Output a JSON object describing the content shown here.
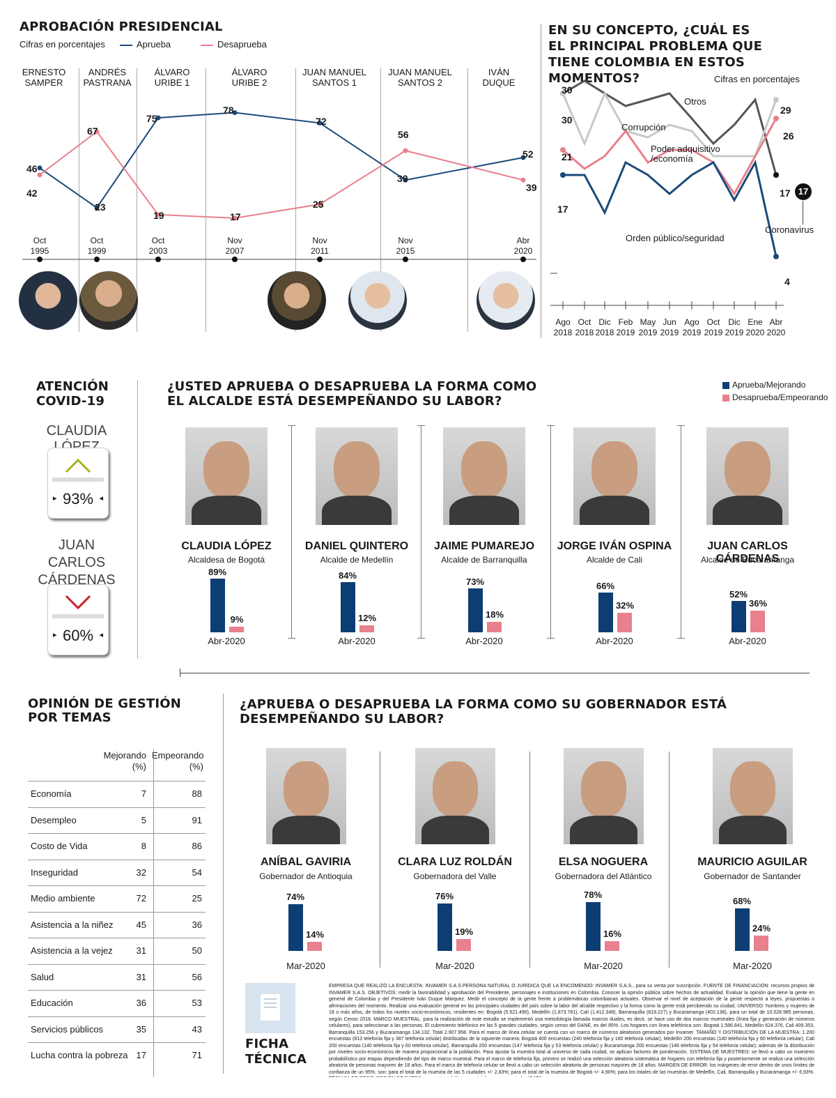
{
  "presidential": {
    "title": "APROBACIÓN PRESIDENCIAL",
    "subtitle": "Cifras en porcentajes",
    "legend_approve": "Aprueba",
    "legend_disapprove": "Desaprueba",
    "eras": [
      "ERNESTO\nSAMPER",
      "ANDRÉS\nPASTRANA",
      "ÁLVARO\nURIBE 1",
      "ÁLVARO\nURIBE 2",
      "JUAN MANUEL\nSANTOS 1",
      "JUAN MANUEL\nSANTOS 2",
      "IVÁN\nDUQUE"
    ],
    "era_l1": [
      "ERNESTO",
      "ANDRÉS",
      "ÁLVARO",
      "ÁLVARO",
      "JUAN MANUEL",
      "JUAN MANUEL",
      "IVÁN"
    ],
    "era_l2": [
      "SAMPER",
      "PASTRANA",
      "URIBE 1",
      "URIBE 2",
      "SANTOS 1",
      "SANTOS 2",
      "DUQUE"
    ],
    "dates": [
      [
        "Oct",
        "1995"
      ],
      [
        "Oct",
        "1999"
      ],
      [
        "Oct",
        "2003"
      ],
      [
        "Nov",
        "2007"
      ],
      [
        "Nov",
        "2011"
      ],
      [
        "Nov",
        "2015"
      ],
      [
        "Abr",
        "2020"
      ]
    ],
    "approve_labels": [
      "46",
      "23",
      "75",
      "78",
      "72",
      "39",
      "52"
    ],
    "disapprove_labels": [
      "42",
      "67",
      "19",
      "17",
      "25",
      "56",
      "39"
    ],
    "colors": {
      "approve": "#1b4a7a",
      "disapprove": "#e8808d"
    }
  },
  "problems": {
    "title_l1": "EN SU CONCEPTO, ¿CUÁL ES",
    "title_l2": "EL PRINCIPAL PROBLEMA QUE",
    "title_l3": "TIENE COLOMBIA EN ESTOS MOMENTOS?",
    "subtitle": "Cifras en porcentajes",
    "series_labels": {
      "otros": "Otros",
      "corrupcion": "Corrupción",
      "poder_l1": "Poder adquisitivo",
      "poder_l2": "/economía",
      "orden": "Orden público/seguridad",
      "coronavirus": "Coronavirus"
    },
    "value_labels": {
      "otros_start": "30",
      "corrupcion_start": "30",
      "poder_start": "21",
      "orden_start": "17",
      "corrupcion_end": "29",
      "poder_end": "26",
      "otros_end": "17",
      "coronavirus_end": "17",
      "orden_end": "4"
    },
    "x_l1": [
      "Ago",
      "Oct",
      "Dic",
      "Feb",
      "May",
      "Jun",
      "Ago",
      "Oct",
      "Dic",
      "Ene",
      "Abr"
    ],
    "x_l2": [
      "2018",
      "2018",
      "2018",
      "2019",
      "2019",
      "2019",
      "2019",
      "2019",
      "2019",
      "2020",
      "2020"
    ]
  },
  "chart_data": [
    {
      "type": "line",
      "title": "APROBACIÓN PRESIDENCIAL",
      "subtitle": "Cifras en porcentajes",
      "x": [
        "Oct 1995",
        "Oct 1999",
        "Oct 2003",
        "Nov 2007",
        "Nov 2011",
        "Nov 2015",
        "Abr 2020"
      ],
      "series": [
        {
          "name": "Aprueba",
          "values": [
            46,
            23,
            75,
            78,
            72,
            39,
            52
          ]
        },
        {
          "name": "Desaprueba",
          "values": [
            42,
            67,
            19,
            17,
            25,
            56,
            39
          ]
        }
      ]
    },
    {
      "type": "line",
      "title": "EN SU CONCEPTO, ¿CUÁL ES EL PRINCIPAL PROBLEMA QUE TIENE COLOMBIA EN ESTOS MOMENTOS?",
      "subtitle": "Cifras en porcentajes",
      "x": [
        "Ago 2018",
        "Oct 2018",
        "Dic 2018",
        "Feb 2019",
        "May 2019",
        "Jun 2019",
        "Ago 2019",
        "Oct 2019",
        "Dic 2019",
        "Ene 2020",
        "Abr 2020"
      ],
      "ylim": [
        0,
        32
      ],
      "series": [
        {
          "name": "Otros",
          "values": [
            30,
            32,
            30,
            28,
            29,
            30,
            26,
            22,
            25,
            29,
            17
          ],
          "color": "#555555"
        },
        {
          "name": "Corrupción",
          "values": [
            30,
            22,
            30,
            24,
            23,
            25,
            24,
            20,
            20,
            20,
            29
          ],
          "color": "#c8c8c8"
        },
        {
          "name": "Poder adquisitivo/economía",
          "values": [
            21,
            18,
            20,
            24,
            19,
            21,
            21,
            19,
            14,
            20,
            26
          ],
          "color": "#e8808d"
        },
        {
          "name": "Orden público/seguridad",
          "values": [
            17,
            17,
            11,
            19,
            17,
            14,
            17,
            19,
            13,
            19,
            4
          ],
          "color": "#1b4a7a"
        },
        {
          "name": "Coronavirus",
          "values": [
            null,
            null,
            null,
            null,
            null,
            null,
            null,
            null,
            null,
            null,
            17
          ],
          "color": "#111111"
        }
      ]
    },
    {
      "type": "bar",
      "title": "¿USTED APRUEBA O DESAPRUEBA LA FORMA COMO EL ALCALDE ESTÁ DESEMPEÑANDO SU LABOR?",
      "categories": [
        "CLAUDIA LÓPEZ",
        "DANIEL QUINTERO",
        "JAIME PUMAREJO",
        "JORGE IVÁN OSPINA",
        "JUAN CARLOS CÁRDENAS"
      ],
      "series": [
        {
          "name": "Aprueba/Mejorando",
          "values": [
            89,
            84,
            73,
            66,
            52
          ]
        },
        {
          "name": "Desaprueba/Empeorando",
          "values": [
            9,
            12,
            18,
            32,
            36
          ]
        }
      ]
    },
    {
      "type": "bar",
      "title": "¿APRUEBA O DESAPRUEBA LA FORMA COMO SU GOBERNADOR ESTÁ DESEMPEÑANDO SU LABOR?",
      "categories": [
        "ANÍBAL GAVIRIA",
        "CLARA LUZ ROLDÁN",
        "ELSA NOGUERA",
        "MAURICIO AGUILAR"
      ],
      "series": [
        {
          "name": "Aprueba",
          "values": [
            74,
            76,
            78,
            68
          ]
        },
        {
          "name": "Desaprueba",
          "values": [
            14,
            19,
            16,
            24
          ]
        }
      ]
    },
    {
      "type": "table",
      "title": "OPINIÓN DE GESTIÓN POR TEMAS",
      "columns": [
        "Mejorando (%)",
        "Empeorando (%)"
      ],
      "rows": [
        [
          "Economía",
          7,
          88
        ],
        [
          "Desempleo",
          5,
          91
        ],
        [
          "Costo de Vida",
          8,
          86
        ],
        [
          "Inseguridad",
          32,
          54
        ],
        [
          "Medio ambiente",
          72,
          25
        ],
        [
          "Asistencia a la niñez",
          45,
          36
        ],
        [
          "Asistencia a la vejez",
          31,
          50
        ],
        [
          "Salud",
          31,
          56
        ],
        [
          "Educación",
          36,
          53
        ],
        [
          "Servicios públicos",
          35,
          43
        ],
        [
          "Lucha contra la pobreza",
          17,
          71
        ]
      ]
    }
  ],
  "covid": {
    "title_l1": "ATENCIÓN",
    "title_l2": "COVID-19",
    "p1_name": "CLAUDIA LÓPEZ",
    "p1_value": "93%",
    "p2_name_l1": "JUAN CARLOS",
    "p2_name_l2": "CÁRDENAS",
    "p2_value": "60%"
  },
  "mayors": {
    "title_l1": "¿USTED APRUEBA O DESAPRUEBA LA FORMA COMO",
    "title_l2": "EL ALCALDE ESTÁ DESEMPEÑANDO SU LABOR?",
    "legend_approve": "Aprueba/Mejorando",
    "legend_disapprove": "Desaprueba/Empeorando",
    "items": [
      {
        "name": "CLAUDIA LÓPEZ",
        "role": "Alcaldesa de Bogotá",
        "approve": "89%",
        "disapprove": "9%",
        "date": "Abr-2020"
      },
      {
        "name": "DANIEL QUINTERO",
        "role": "Alcalde de Medellín",
        "approve": "84%",
        "disapprove": "12%",
        "date": "Abr-2020"
      },
      {
        "name": "JAIME PUMAREJO",
        "role": "Alcalde de Barranquilla",
        "approve": "73%",
        "disapprove": "18%",
        "date": "Abr-2020"
      },
      {
        "name": "JORGE IVÁN OSPINA",
        "role": "Alcalde de Cali",
        "approve": "66%",
        "disapprove": "32%",
        "date": "Abr-2020"
      },
      {
        "name": "JUAN CARLOS CÁRDENAS",
        "role": "Alcalde de Bucaramanga",
        "approve": "52%",
        "disapprove": "36%",
        "date": "Abr-2020"
      }
    ]
  },
  "topics": {
    "title_l1": "OPINIÓN DE GESTIÓN",
    "title_l2": "POR TEMAS",
    "col1_l1": "Mejorando",
    "col1_l2": "(%)",
    "col2_l1": "Empeorando",
    "col2_l2": "(%)",
    "rows": [
      {
        "topic": "Economía",
        "up": "7",
        "down": "88"
      },
      {
        "topic": "Desempleo",
        "up": "5",
        "down": "91"
      },
      {
        "topic": "Costo de Vida",
        "up": "8",
        "down": "86"
      },
      {
        "topic": "Inseguridad",
        "up": "32",
        "down": "54"
      },
      {
        "topic": "Medio ambiente",
        "up": "72",
        "down": "25"
      },
      {
        "topic": "Asistencia a la niñez",
        "up": "45",
        "down": "36"
      },
      {
        "topic": "Asistencia a la vejez",
        "up": "31",
        "down": "50"
      },
      {
        "topic": "Salud",
        "up": "31",
        "down": "56"
      },
      {
        "topic": "Educación",
        "up": "36",
        "down": "53"
      },
      {
        "topic": "Servicios públicos",
        "up": "35",
        "down": "43"
      },
      {
        "topic": "Lucha contra la pobreza",
        "up": "17",
        "down": "71"
      }
    ]
  },
  "governors": {
    "title": "¿APRUEBA O DESAPRUEBA LA FORMA COMO SU GOBERNADOR  ESTÁ DESEMPEÑANDO SU LABOR?",
    "items": [
      {
        "name": "ANÍBAL GAVIRIA",
        "role": "Gobernador de Antioquia",
        "approve": "74%",
        "disapprove": "14%",
        "date": "Mar-2020"
      },
      {
        "name": "CLARA LUZ ROLDÁN",
        "role": "Gobernadora del Valle",
        "approve": "76%",
        "disapprove": "19%",
        "date": "Mar-2020"
      },
      {
        "name": "ELSA NOGUERA",
        "role": "Gobernadora del Atlántico",
        "approve": "78%",
        "disapprove": "16%",
        "date": "Mar-2020"
      },
      {
        "name": "MAURICIO AGUILAR",
        "role": "Gobernador de Santander",
        "approve": "68%",
        "disapprove": "24%",
        "date": "Mar-2020"
      }
    ]
  },
  "ficha": {
    "label_l1": "FICHA",
    "label_l2": "TÉCNICA",
    "text": "EMPRESA QUE REALIZÓ LA ENCUESTA: INVAMER S.A.S.PERSONA NATURAL O JURÍDICA QUE LA ENCOMENDÓ: INVAMER S.A.S., para su venta por suscripción. FUENTE DE FINANCIACIÓN: recursos propios de INVAMER S.A.S. OBJETIVOS: medir la favorabilidad y aprobación del Presidente, personajes e instituciones en Colombia. Conocer la opinión pública sobre hechos de actualidad. Evaluar la opinión que tiene la gente en general de Colombia y del Presidente Iván Duque Márquez. Medir el concepto de la gente frente a problemáticas colombianas actuales. Observar el nivel de aceptación de la gente respecto a leyes, propuestas o afirmaciones del momento. Realizar una evaluación general en las principales ciudades del país sobre la labor del alcalde respectivo y la forma como la gente está percibiendo su ciudad. UNIVERSO: hombres y mujeres de 18 o más años, de todos los niveles socio-económicos, residentes en: Bogotá (5.521.490), Medellín (1.873.781), Cali (1.412.348), Barranquilla (819.227) y Bucaramanga (402.138), para un total de 10.028.985 personas, según Censo 2018. MARCO MUESTRAL: para la realización de este estudio se implementó una metodología llamada marcos duales, es decir, se hace uso de dos marcos muestrales (línea fija y generación de números celulares), para seleccionar a las personas. El cubrimiento telefónico en las 5 grandes ciudades, según censo del DANE, es del 85%. Los hogares con línea telefónica son: Bogotá 1.586.841, Medellín 624.376, Cali 409.353, Barranquilla 153.256 y Bucaramanga 134.132. Total 2.907.958. Para el marco de línea celular se cuenta con un marco de números aleatorios generados por Invamer. TAMAÑO Y DISTRIBUCIÓN DE LA MUESTRA: 1.200 encuestas (813 telefonía fija y 387 telefonía celular) distribuidas de la siguiente manera: Bogotá 400 encuestas (240 telefonía fija y 160 telefonía celular), Medellín 200 encuestas (140 telefonía fija y 60 telefonía celular), Cali 200 encuestas (140 telefonía fija y 60 telefonía celular), Barranquilla 200 encuestas (147 telefonía fija y 53 telefonía celular) y Bucaramanga 200 encuestas (146 telefonía fija y 54 telefonía celular); además de la distribución por niveles socio-económicos de manera proporcional a la población. Para ajustar la muestra total al universo de cada ciudad, se aplican factores de ponderación. SISTEMA DE MUESTREO: se llevó a cabo un muestreo probabilístico por etapas dependiendo del tipo de marco muestral. Para el marco de telefonía fija, primero se realizó una selección aleatoria sistemática de hogares con telefonía fija y posteriormente se realiza una selección aleatoria de personas mayores de 18 años. Para el marco de telefonía celular se llevó a cabo un selección aleatoria de personas mayores de 18 años. MARGEN DE ERROR: los márgenes de error dentro de unos límites de confianza de un 95%, son: para el total de la muestra de las 5 ciudades +/- 2,83%; para el total de la muestra de Bogotá +/- 4,90%; para los totales de las muestras de Medellín, Cali, Barranquilla y Bucaramanga +/- 6,93%. TÉCNICA DE RECOLECCIÓN DE DATOS: encuestas telefónicas asistidas por computador (CATI)."
  }
}
